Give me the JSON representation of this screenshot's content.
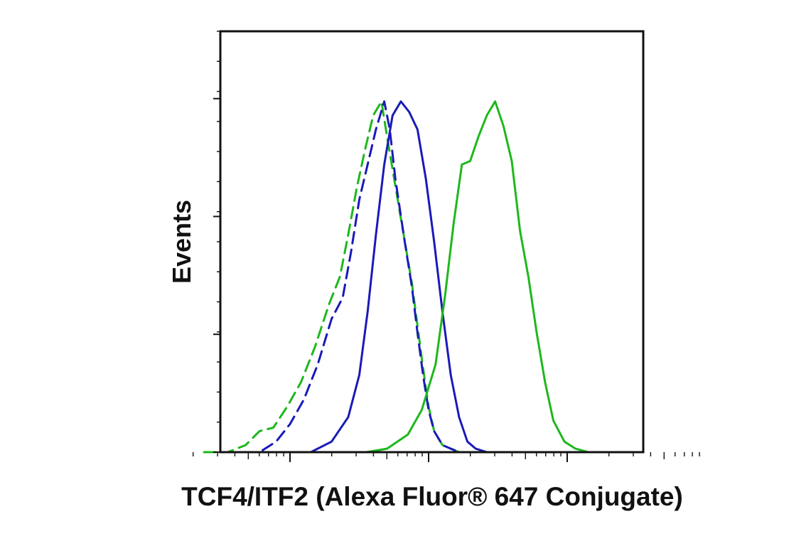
{
  "chart_data": {
    "type": "line",
    "title": "",
    "xlabel": "TCF4/ITF2 (Alexa Fluor® 647 Conjugate)",
    "ylabel": "Events",
    "x_scale": "log",
    "xlim": [
      0.3,
      4.0
    ],
    "ylim": [
      0,
      1.2
    ],
    "grid": false,
    "legend": "none",
    "series": [
      {
        "color": "#1db81d",
        "dash": "dashed",
        "x": [
          0.38,
          0.55,
          0.68,
          0.78,
          0.88,
          0.98,
          1.08,
          1.18,
          1.28,
          1.36,
          1.42,
          1.48,
          1.54,
          1.6,
          1.66,
          1.7,
          1.76,
          1.82,
          1.88,
          1.92,
          1.96,
          2.0,
          2.04,
          2.1,
          2.16,
          2.22,
          2.32
        ],
        "y": [
          0.0,
          0.0,
          0.02,
          0.06,
          0.07,
          0.13,
          0.2,
          0.3,
          0.42,
          0.5,
          0.62,
          0.75,
          0.86,
          0.96,
          1.0,
          0.9,
          0.76,
          0.62,
          0.48,
          0.36,
          0.24,
          0.13,
          0.06,
          0.02,
          0.01,
          0.0,
          0.0
        ]
      },
      {
        "color": "#1a1ab8",
        "dash": "dashed",
        "x": [
          0.55,
          0.78,
          0.9,
          1.0,
          1.1,
          1.2,
          1.3,
          1.38,
          1.44,
          1.5,
          1.56,
          1.62,
          1.68,
          1.72,
          1.76,
          1.82,
          1.88,
          1.92,
          1.96,
          2.0,
          2.04,
          2.1,
          2.16,
          2.22,
          2.32
        ],
        "y": [
          0.0,
          0.0,
          0.03,
          0.08,
          0.15,
          0.25,
          0.38,
          0.44,
          0.57,
          0.72,
          0.82,
          0.92,
          1.0,
          0.92,
          0.78,
          0.62,
          0.47,
          0.34,
          0.22,
          0.12,
          0.06,
          0.02,
          0.01,
          0.0,
          0.0
        ]
      },
      {
        "color": "#1a1ab8",
        "dash": "solid",
        "x": [
          1.0,
          1.15,
          1.3,
          1.42,
          1.5,
          1.56,
          1.62,
          1.68,
          1.74,
          1.8,
          1.86,
          1.92,
          1.98,
          2.04,
          2.1,
          2.16,
          2.22,
          2.28,
          2.34,
          2.42,
          2.5
        ],
        "y": [
          0.0,
          0.0,
          0.03,
          0.1,
          0.22,
          0.4,
          0.62,
          0.82,
          0.96,
          1.0,
          0.97,
          0.92,
          0.78,
          0.6,
          0.4,
          0.22,
          0.1,
          0.03,
          0.01,
          0.0,
          0.0
        ]
      },
      {
        "color": "#1db81d",
        "dash": "solid",
        "x": [
          1.55,
          1.7,
          1.85,
          1.95,
          2.05,
          2.12,
          2.18,
          2.24,
          2.3,
          2.36,
          2.42,
          2.48,
          2.54,
          2.6,
          2.66,
          2.72,
          2.78,
          2.84,
          2.9,
          2.98,
          3.06,
          3.15,
          3.3
        ],
        "y": [
          0.0,
          0.01,
          0.05,
          0.12,
          0.25,
          0.45,
          0.65,
          0.82,
          0.83,
          0.9,
          0.96,
          1.0,
          0.93,
          0.83,
          0.63,
          0.5,
          0.34,
          0.2,
          0.09,
          0.03,
          0.01,
          0.0,
          0.0
        ]
      }
    ]
  }
}
